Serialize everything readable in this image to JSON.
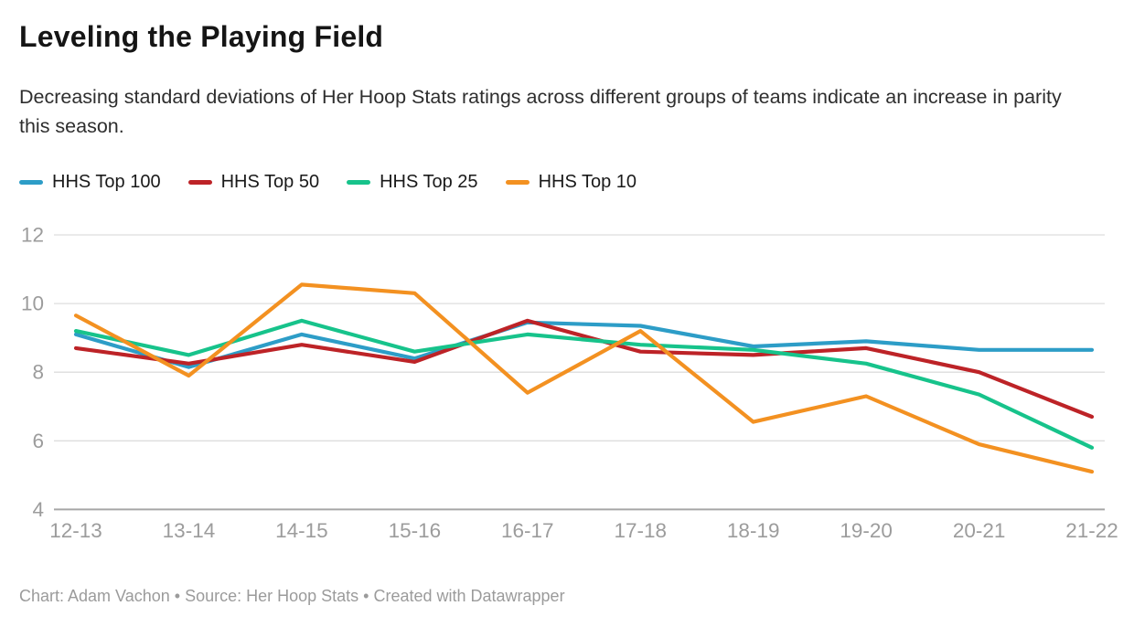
{
  "header": {
    "title": "Leveling the Playing Field",
    "subtitle": "Decreasing standard deviations of Her Hoop Stats ratings across different groups of teams indicate an increase in parity this season."
  },
  "footer": {
    "credit": "Chart: Adam Vachon • Source: Her Hoop Stats • Created with Datawrapper"
  },
  "chart_data": {
    "type": "line",
    "title": "Leveling the Playing Field",
    "subtitle": "Decreasing standard deviations of Her Hoop Stats ratings across different groups of teams indicate an increase in parity this season.",
    "categories": [
      "12-13",
      "13-14",
      "14-15",
      "15-16",
      "16-17",
      "17-18",
      "18-19",
      "19-20",
      "20-21",
      "21-22"
    ],
    "series": [
      {
        "name": "HHS Top 100",
        "color": "#2d9dc7",
        "values": [
          9.1,
          8.15,
          9.1,
          8.4,
          9.45,
          9.35,
          8.75,
          8.9,
          8.65,
          8.65
        ]
      },
      {
        "name": "HHS Top 50",
        "color": "#bd2327",
        "values": [
          8.7,
          8.25,
          8.8,
          8.3,
          9.5,
          8.6,
          8.5,
          8.7,
          8.0,
          6.7
        ]
      },
      {
        "name": "HHS Top 25",
        "color": "#17c38b",
        "values": [
          9.2,
          8.5,
          9.5,
          8.6,
          9.1,
          8.8,
          8.65,
          8.25,
          7.35,
          5.8
        ]
      },
      {
        "name": "HHS Top 10",
        "color": "#f39121",
        "values": [
          9.65,
          7.9,
          10.55,
          10.3,
          7.4,
          9.2,
          6.55,
          7.3,
          5.9,
          5.1
        ]
      }
    ],
    "xlabel": "",
    "ylabel": "",
    "ylim": [
      4,
      12
    ],
    "yticks": [
      12,
      10,
      8,
      6,
      4
    ],
    "grid": true,
    "legend_position": "top",
    "colors": {
      "gridline": "#dddddd",
      "baseline": "#a6a6a6",
      "tick_label": "#9c9c9c"
    }
  }
}
